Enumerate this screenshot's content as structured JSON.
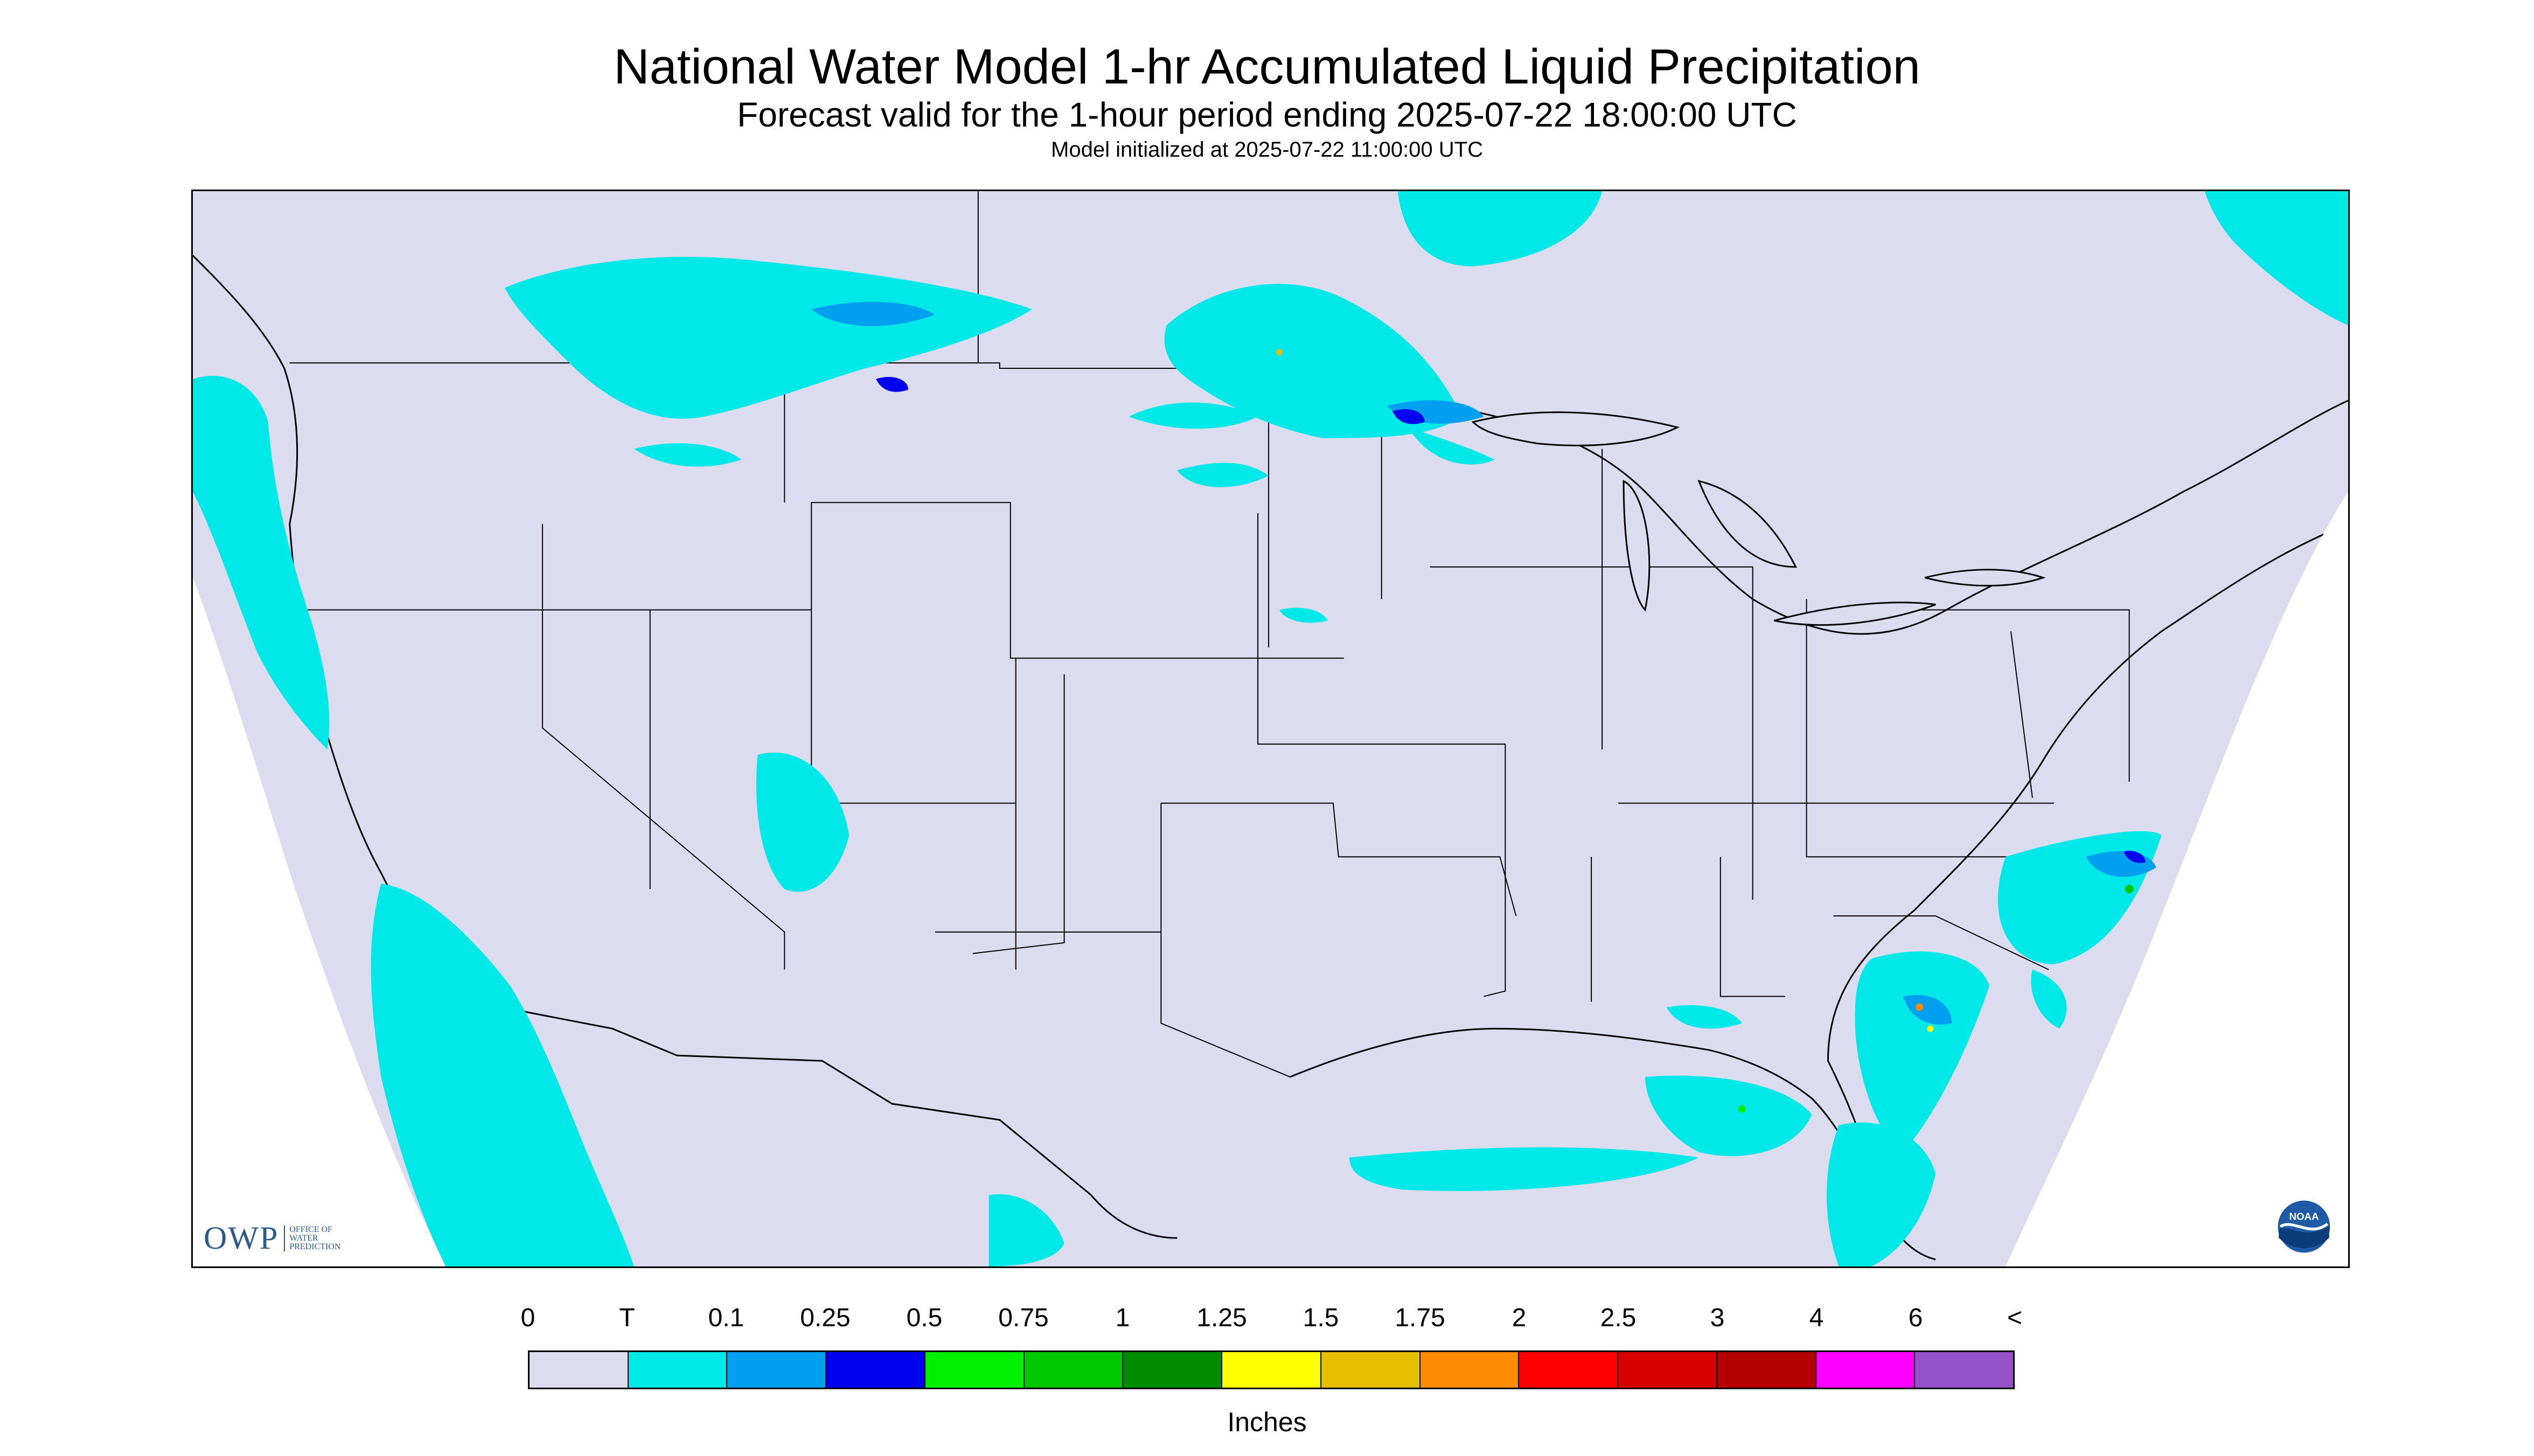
{
  "header": {
    "title": "National Water Model 1-hr Accumulated Liquid Precipitation",
    "subtitle": "Forecast valid for the 1-hour period ending 2025-07-22 18:00:00 UTC",
    "init_line": "Model initialized at 2025-07-22 11:00:00 UTC"
  },
  "logos": {
    "owp_mark": "OWP",
    "owp_text": "OFFICE OF WATER PREDICTION",
    "noaa_text": "NOAA"
  },
  "legend": {
    "tick_labels": [
      "0",
      "T",
      "0.1",
      "0.25",
      "0.5",
      "0.75",
      "1",
      "1.25",
      "1.5",
      "1.75",
      "2",
      "2.5",
      "3",
      "4",
      "6",
      "<"
    ],
    "colors": [
      "#dcdcf0",
      "#00e8e8",
      "#00a0f0",
      "#0000f0",
      "#00f000",
      "#00c800",
      "#008c00",
      "#ffff00",
      "#e6be00",
      "#ff8c00",
      "#ff0000",
      "#d80000",
      "#b40000",
      "#ff00ff",
      "#9650c8"
    ],
    "unit": "Inches"
  },
  "map": {
    "background_color": "#dcdcf0",
    "outside_color": "#ffffff",
    "boundary_color": "#000000"
  }
}
